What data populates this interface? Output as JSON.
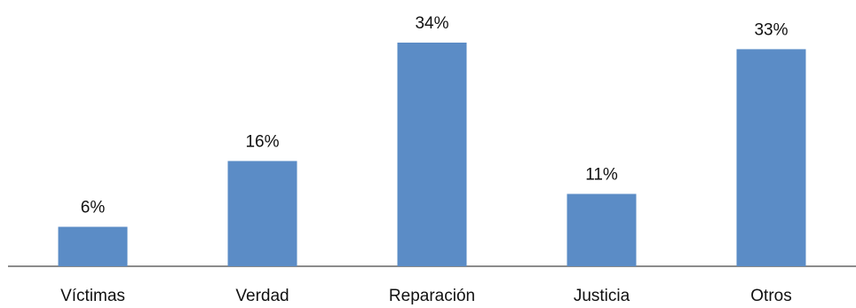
{
  "chart_data": {
    "type": "bar",
    "title": "",
    "xlabel": "",
    "ylabel": "",
    "categories": [
      "Víctimas",
      "Verdad",
      "Reparación",
      "Justicia",
      "Otros"
    ],
    "values": [
      6,
      16,
      34,
      11,
      33
    ],
    "data_labels": [
      "6%",
      "16%",
      "34%",
      "11%",
      "33%"
    ],
    "unit": "%",
    "ylim": [
      0,
      34
    ],
    "grid": false,
    "legend": "none",
    "bar_color": "#5B8CC6",
    "axis_color": "#8C8C8C"
  }
}
